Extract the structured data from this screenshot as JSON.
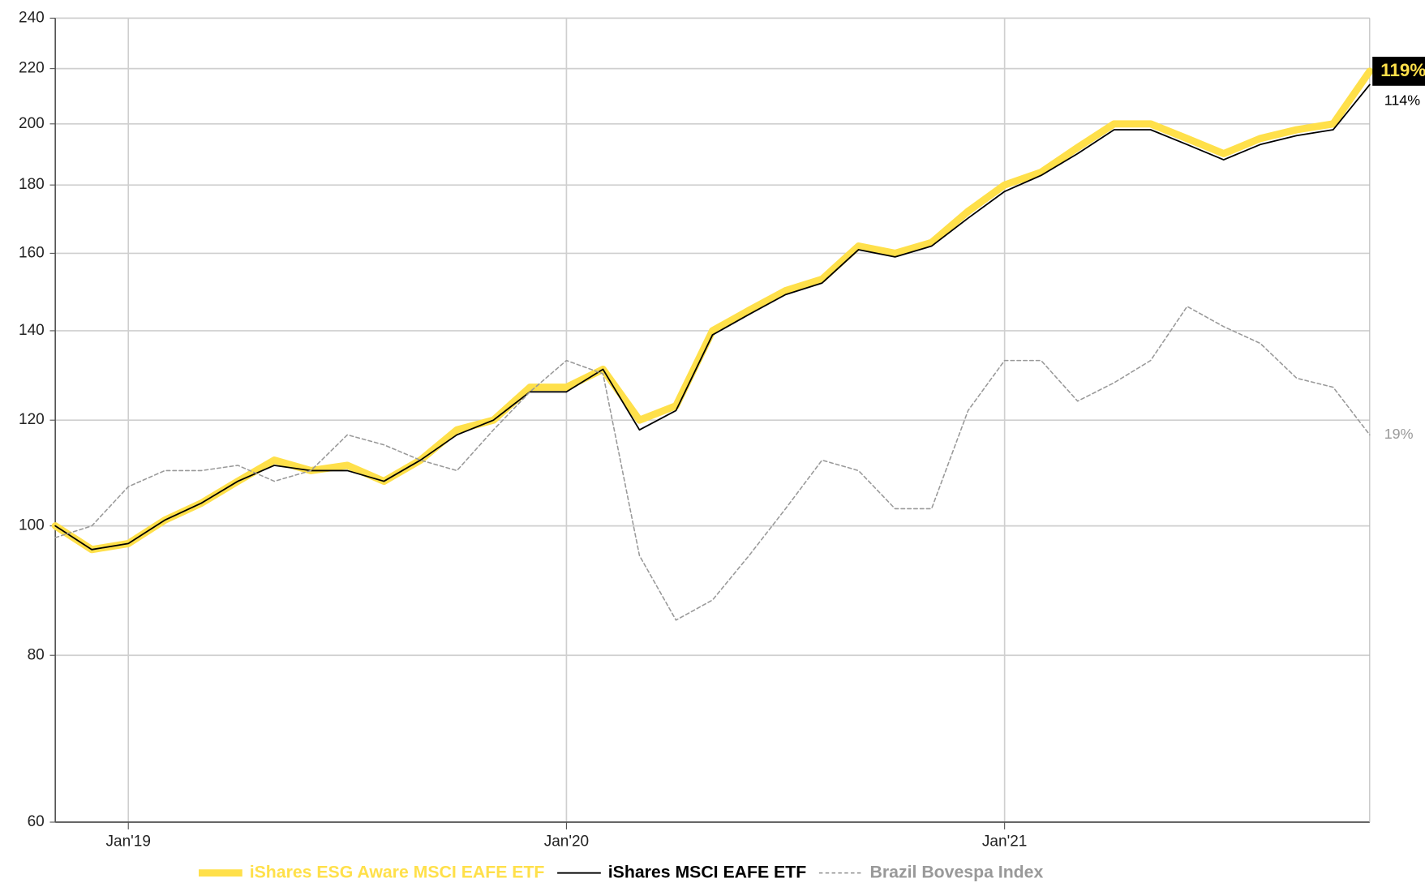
{
  "chart_data": {
    "type": "line",
    "log_y": true,
    "grid": true,
    "legend": "bottom",
    "x": [
      "2018-11",
      "2018-12",
      "2019-01",
      "2019-02",
      "2019-03",
      "2019-04",
      "2019-05",
      "2019-06",
      "2019-07",
      "2019-08",
      "2019-09",
      "2019-10",
      "2019-11",
      "2019-12",
      "2020-01",
      "2020-02",
      "2020-03",
      "2020-04",
      "2020-05",
      "2020-06",
      "2020-07",
      "2020-08",
      "2020-09",
      "2020-10",
      "2020-11",
      "2020-12",
      "2021-01",
      "2021-02",
      "2021-03",
      "2021-04",
      "2021-05",
      "2021-06",
      "2021-07",
      "2021-08",
      "2021-09",
      "2021-10",
      "2021-11"
    ],
    "xlim": [
      "2018-11",
      "2021-11"
    ],
    "xticks": [
      {
        "value": "2019-01",
        "label": "Jan'19"
      },
      {
        "value": "2020-01",
        "label": "Jan'20"
      },
      {
        "value": "2021-01",
        "label": "Jan'21"
      }
    ],
    "ylim": [
      60,
      240
    ],
    "yticks": [
      60,
      80,
      100,
      120,
      140,
      160,
      180,
      200,
      220,
      240
    ],
    "series": [
      {
        "name": "iShares ESG Aware MSCI EAFE ETF",
        "color": "#ffe04a",
        "line_width": 8,
        "end_label": "119%",
        "values": [
          100,
          96,
          97,
          101,
          104,
          108,
          112,
          110,
          111,
          108,
          112,
          118,
          120,
          127,
          127,
          131,
          120,
          123,
          140,
          145,
          150,
          153,
          162,
          160,
          163,
          172,
          180,
          184,
          192,
          200,
          200,
          195,
          190,
          195,
          198,
          200,
          219
        ]
      },
      {
        "name": "iShares MSCI EAFE ETF",
        "color": "#000000",
        "line_width": 1.6,
        "end_label": "114%",
        "values": [
          100,
          96,
          97,
          101,
          104,
          108,
          111,
          110,
          110,
          108,
          112,
          117,
          120,
          126,
          126,
          131,
          118,
          122,
          139,
          144,
          149,
          152,
          161,
          159,
          162,
          170,
          178,
          183,
          190,
          198,
          198,
          193,
          188,
          193,
          196,
          198,
          214
        ]
      },
      {
        "name": "Brazil Bovespa Index",
        "color": "#999999",
        "line_width": 1.4,
        "dash": true,
        "end_label": "19%",
        "values": [
          98,
          100,
          107,
          110,
          110,
          111,
          108,
          110,
          117,
          115,
          112,
          110,
          118,
          126,
          133,
          130,
          95,
          85,
          88,
          95,
          103,
          112,
          110,
          103,
          103,
          122,
          133,
          133,
          124,
          128,
          133,
          146,
          141,
          137,
          129,
          127,
          117
        ]
      }
    ]
  }
}
